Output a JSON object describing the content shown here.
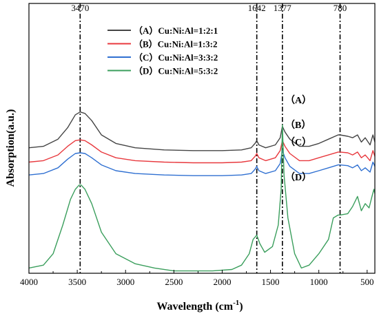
{
  "chart_data": {
    "type": "line",
    "xlabel": "Wavelength (cm",
    "xlabel_sup": "-1",
    "xlabel_end": ")",
    "ylabel": "Absorption(a.u.)",
    "xlim": [
      4000,
      420
    ],
    "x_reversed": true,
    "x_ticks": [
      "4000",
      "3500",
      "3000",
      "2500",
      "2000",
      "1500",
      "1000",
      "500"
    ],
    "x_tick_values": [
      4000,
      3500,
      3000,
      2500,
      2000,
      1500,
      1000,
      500
    ],
    "peak_lines": [
      {
        "x": 3470,
        "label": "3470"
      },
      {
        "x": 1642,
        "label": "1642"
      },
      {
        "x": 1377,
        "label": "1377"
      },
      {
        "x": 780,
        "label": "780"
      }
    ],
    "legend_position": "top-center",
    "series": [
      {
        "name": "（A）Cu:Ni:Al=1:2:1",
        "curve_label": "（A）",
        "color": "#444444",
        "x": [
          4000,
          3850,
          3700,
          3600,
          3520,
          3470,
          3420,
          3350,
          3250,
          3100,
          2900,
          2600,
          2300,
          2000,
          1800,
          1700,
          1660,
          1642,
          1620,
          1550,
          1450,
          1400,
          1377,
          1350,
          1300,
          1200,
          1100,
          1000,
          900,
          800,
          780,
          700,
          650,
          600,
          560,
          520,
          470,
          440,
          420
        ],
        "y": [
          29,
          30,
          35,
          43,
          52,
          54,
          53,
          48,
          38,
          32,
          29,
          27.5,
          27,
          27,
          27.5,
          29,
          32,
          34,
          31,
          29,
          31,
          36,
          44,
          40,
          35,
          30,
          30,
          32,
          35,
          38,
          38,
          37,
          36,
          38,
          33,
          36,
          31,
          38,
          33
        ]
      },
      {
        "name": "（B）Cu:Ni:Al=1:3:2",
        "curve_label": "（B）",
        "color": "#e8383d",
        "x": [
          4000,
          3850,
          3700,
          3600,
          3520,
          3470,
          3420,
          3350,
          3250,
          3100,
          2900,
          2600,
          2300,
          2000,
          1800,
          1700,
          1660,
          1642,
          1620,
          1550,
          1450,
          1400,
          1377,
          1350,
          1300,
          1200,
          1100,
          1000,
          900,
          800,
          780,
          700,
          650,
          600,
          560,
          520,
          470,
          440,
          420
        ],
        "y": [
          19,
          20,
          24,
          30,
          34,
          34.5,
          34,
          31,
          26,
          22,
          20,
          19,
          18.5,
          18.5,
          19,
          20,
          23,
          25,
          22,
          20,
          22,
          27,
          34,
          30,
          25,
          20,
          20,
          22,
          24,
          26,
          26,
          25.5,
          24,
          26,
          22,
          24,
          20,
          27,
          23
        ]
      },
      {
        "name": "（C）Cu:Ni:Al=3:3:2",
        "curve_label": "（C）",
        "color": "#2e6fd1",
        "x": [
          4000,
          3850,
          3700,
          3600,
          3520,
          3470,
          3420,
          3350,
          3250,
          3100,
          2900,
          2600,
          2300,
          2000,
          1800,
          1700,
          1660,
          1642,
          1620,
          1550,
          1450,
          1400,
          1377,
          1350,
          1300,
          1200,
          1100,
          1000,
          900,
          800,
          780,
          700,
          650,
          600,
          560,
          520,
          470,
          440,
          420
        ],
        "y": [
          10,
          11,
          15,
          21,
          25,
          25.5,
          25,
          22,
          17,
          13,
          11,
          10,
          9.5,
          9.5,
          10,
          11,
          14,
          16,
          13,
          11,
          13,
          18,
          27,
          22,
          16,
          11,
          11,
          13,
          15,
          17,
          17,
          16.5,
          15,
          17,
          13,
          15,
          12,
          19,
          16
        ]
      },
      {
        "name": "（D）Cu:Ni:Al=5:3:2",
        "curve_label": "（D）",
        "color": "#3a9e5c",
        "x": [
          4000,
          3850,
          3750,
          3650,
          3570,
          3520,
          3480,
          3460,
          3420,
          3350,
          3250,
          3100,
          2900,
          2700,
          2500,
          2300,
          2100,
          1900,
          1800,
          1720,
          1680,
          1642,
          1610,
          1560,
          1480,
          1420,
          1390,
          1377,
          1360,
          1320,
          1250,
          1180,
          1100,
          1000,
          900,
          850,
          800,
          780,
          700,
          650,
          600,
          560,
          520,
          480,
          450,
          430,
          420
        ],
        "y": [
          -55,
          -53,
          -45,
          -25,
          -7,
          0,
          3,
          3,
          0,
          -10,
          -30,
          -45,
          -52,
          -55,
          -57,
          -57,
          -57,
          -56,
          -53,
          -45,
          -35,
          -32,
          -38,
          -44,
          -40,
          -25,
          0,
          45,
          10,
          -20,
          -45,
          -55,
          -53,
          -45,
          -35,
          -20,
          -18,
          -18,
          -17,
          -12,
          -5,
          -15,
          -10,
          -13,
          -5,
          0,
          -3
        ]
      }
    ]
  }
}
